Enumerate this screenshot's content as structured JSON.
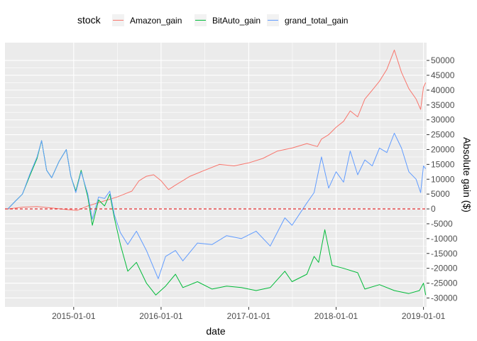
{
  "chart_data": {
    "type": "line",
    "xlabel": "date",
    "ylabel": "Absolute gain ($)",
    "x_range": [
      "2014-03-20",
      "2019-01-14"
    ],
    "ylim": [
      -33000,
      56000
    ],
    "x_ticks": [
      "2015-01-01",
      "2016-01-01",
      "2017-01-01",
      "2018-01-01",
      "2019-01-01"
    ],
    "y_ticks": [
      -30000,
      -25000,
      -20000,
      -15000,
      -10000,
      -5000,
      0,
      5000,
      10000,
      15000,
      20000,
      25000,
      30000,
      35000,
      40000,
      45000,
      50000
    ],
    "y_tick_labels": [
      "-30000",
      "-25000",
      "-20000",
      "-15000",
      "-10000",
      "-5000",
      "0",
      "5000",
      "10000",
      "15000",
      "20000",
      "25000",
      "30000",
      "35000",
      "40000",
      "45000",
      "50000"
    ],
    "reference_line": {
      "y": 0,
      "color": "#e41a1c",
      "style": "dashed"
    },
    "legend": {
      "title": "stock",
      "position": "top"
    },
    "grid": true,
    "series": [
      {
        "name": "Amazon_gain",
        "color": "#F8766D",
        "points": [
          [
            "2014-04-01",
            0
          ],
          [
            "2014-06-01",
            600
          ],
          [
            "2014-08-01",
            800
          ],
          [
            "2014-10-01",
            300
          ],
          [
            "2014-12-01",
            -200
          ],
          [
            "2015-01-15",
            -500
          ],
          [
            "2015-03-01",
            1000
          ],
          [
            "2015-05-01",
            2500
          ],
          [
            "2015-07-01",
            4000
          ],
          [
            "2015-08-01",
            5000
          ],
          [
            "2015-09-01",
            6000
          ],
          [
            "2015-10-01",
            9500
          ],
          [
            "2015-11-01",
            11000
          ],
          [
            "2015-12-01",
            11500
          ],
          [
            "2016-01-01",
            9500
          ],
          [
            "2016-02-01",
            6500
          ],
          [
            "2016-03-01",
            8000
          ],
          [
            "2016-05-01",
            11000
          ],
          [
            "2016-07-01",
            13000
          ],
          [
            "2016-09-01",
            15000
          ],
          [
            "2016-11-01",
            14500
          ],
          [
            "2017-01-01",
            15500
          ],
          [
            "2017-03-01",
            17000
          ],
          [
            "2017-05-01",
            19500
          ],
          [
            "2017-07-01",
            20500
          ],
          [
            "2017-09-01",
            22000
          ],
          [
            "2017-10-15",
            21000
          ],
          [
            "2017-11-01",
            23500
          ],
          [
            "2017-12-01",
            25000
          ],
          [
            "2018-01-01",
            27500
          ],
          [
            "2018-02-01",
            29500
          ],
          [
            "2018-03-01",
            33000
          ],
          [
            "2018-04-01",
            31000
          ],
          [
            "2018-05-01",
            37000
          ],
          [
            "2018-06-01",
            40000
          ],
          [
            "2018-07-01",
            43000
          ],
          [
            "2018-08-01",
            47000
          ],
          [
            "2018-09-01",
            53500
          ],
          [
            "2018-10-01",
            46000
          ],
          [
            "2018-11-01",
            40500
          ],
          [
            "2018-12-01",
            37000
          ],
          [
            "2018-12-20",
            33500
          ],
          [
            "2019-01-01",
            41000
          ],
          [
            "2019-01-10",
            42500
          ]
        ]
      },
      {
        "name": "BitAuto_gain",
        "color": "#00BA38",
        "points": [
          [
            "2014-04-01",
            0
          ],
          [
            "2014-05-01",
            2500
          ],
          [
            "2014-06-01",
            5000
          ],
          [
            "2014-07-01",
            11000
          ],
          [
            "2014-08-01",
            17000
          ],
          [
            "2014-08-20",
            23000
          ],
          [
            "2014-09-10",
            13000
          ],
          [
            "2014-10-01",
            10500
          ],
          [
            "2014-11-01",
            16000
          ],
          [
            "2014-12-01",
            20000
          ],
          [
            "2014-12-20",
            11000
          ],
          [
            "2015-01-10",
            6000
          ],
          [
            "2015-02-01",
            13000
          ],
          [
            "2015-03-01",
            4000
          ],
          [
            "2015-03-20",
            -5500
          ],
          [
            "2015-04-15",
            3000
          ],
          [
            "2015-05-10",
            1000
          ],
          [
            "2015-06-01",
            5000
          ],
          [
            "2015-06-20",
            -3000
          ],
          [
            "2015-07-15",
            -12000
          ],
          [
            "2015-08-15",
            -21000
          ],
          [
            "2015-09-20",
            -18000
          ],
          [
            "2015-11-01",
            -25000
          ],
          [
            "2015-12-10",
            -29000
          ],
          [
            "2016-01-20",
            -26000
          ],
          [
            "2016-03-01",
            -22000
          ],
          [
            "2016-04-01",
            -26500
          ],
          [
            "2016-06-01",
            -24500
          ],
          [
            "2016-08-01",
            -27000
          ],
          [
            "2016-10-01",
            -26000
          ],
          [
            "2016-12-01",
            -26500
          ],
          [
            "2017-02-01",
            -27500
          ],
          [
            "2017-04-01",
            -26500
          ],
          [
            "2017-06-01",
            -21000
          ],
          [
            "2017-07-01",
            -24500
          ],
          [
            "2017-09-01",
            -22000
          ],
          [
            "2017-10-01",
            -16000
          ],
          [
            "2017-10-20",
            -18000
          ],
          [
            "2017-11-15",
            -7000
          ],
          [
            "2017-12-15",
            -19000
          ],
          [
            "2018-02-01",
            -20000
          ],
          [
            "2018-04-01",
            -21500
          ],
          [
            "2018-05-01",
            -27000
          ],
          [
            "2018-07-01",
            -25500
          ],
          [
            "2018-09-01",
            -27500
          ],
          [
            "2018-11-01",
            -28500
          ],
          [
            "2018-12-15",
            -27500
          ],
          [
            "2019-01-01",
            -25000
          ],
          [
            "2019-01-10",
            -29000
          ]
        ]
      },
      {
        "name": "grand_total_gain",
        "color": "#619CFF",
        "points": [
          [
            "2014-04-01",
            0
          ],
          [
            "2014-05-01",
            2500
          ],
          [
            "2014-06-01",
            5000
          ],
          [
            "2014-07-01",
            11500
          ],
          [
            "2014-08-01",
            17500
          ],
          [
            "2014-08-20",
            23000
          ],
          [
            "2014-09-10",
            13000
          ],
          [
            "2014-10-01",
            10500
          ],
          [
            "2014-11-01",
            16000
          ],
          [
            "2014-12-01",
            20000
          ],
          [
            "2014-12-20",
            11000
          ],
          [
            "2015-01-10",
            5500
          ],
          [
            "2015-02-01",
            12500
          ],
          [
            "2015-03-01",
            5000
          ],
          [
            "2015-03-20",
            -3500
          ],
          [
            "2015-04-15",
            4000
          ],
          [
            "2015-05-10",
            3500
          ],
          [
            "2015-06-01",
            6000
          ],
          [
            "2015-06-20",
            -2000
          ],
          [
            "2015-07-15",
            -8000
          ],
          [
            "2015-08-15",
            -12000
          ],
          [
            "2015-09-20",
            -7500
          ],
          [
            "2015-11-01",
            -14000
          ],
          [
            "2015-12-20",
            -23500
          ],
          [
            "2016-01-20",
            -16000
          ],
          [
            "2016-03-01",
            -14000
          ],
          [
            "2016-04-01",
            -17500
          ],
          [
            "2016-06-01",
            -11500
          ],
          [
            "2016-08-01",
            -12000
          ],
          [
            "2016-10-01",
            -9000
          ],
          [
            "2016-12-01",
            -10000
          ],
          [
            "2017-02-01",
            -7500
          ],
          [
            "2017-04-01",
            -12500
          ],
          [
            "2017-06-01",
            -3000
          ],
          [
            "2017-07-01",
            -5500
          ],
          [
            "2017-09-01",
            2000
          ],
          [
            "2017-10-01",
            5500
          ],
          [
            "2017-11-01",
            17500
          ],
          [
            "2017-12-01",
            7000
          ],
          [
            "2018-01-01",
            12500
          ],
          [
            "2018-02-01",
            9000
          ],
          [
            "2018-03-01",
            19500
          ],
          [
            "2018-04-01",
            11500
          ],
          [
            "2018-05-01",
            16500
          ],
          [
            "2018-06-01",
            14500
          ],
          [
            "2018-07-01",
            20500
          ],
          [
            "2018-08-01",
            19000
          ],
          [
            "2018-09-01",
            25500
          ],
          [
            "2018-10-01",
            20500
          ],
          [
            "2018-11-01",
            12500
          ],
          [
            "2018-12-01",
            10000
          ],
          [
            "2018-12-20",
            5500
          ],
          [
            "2019-01-01",
            14500
          ],
          [
            "2019-01-10",
            13500
          ]
        ]
      }
    ]
  }
}
